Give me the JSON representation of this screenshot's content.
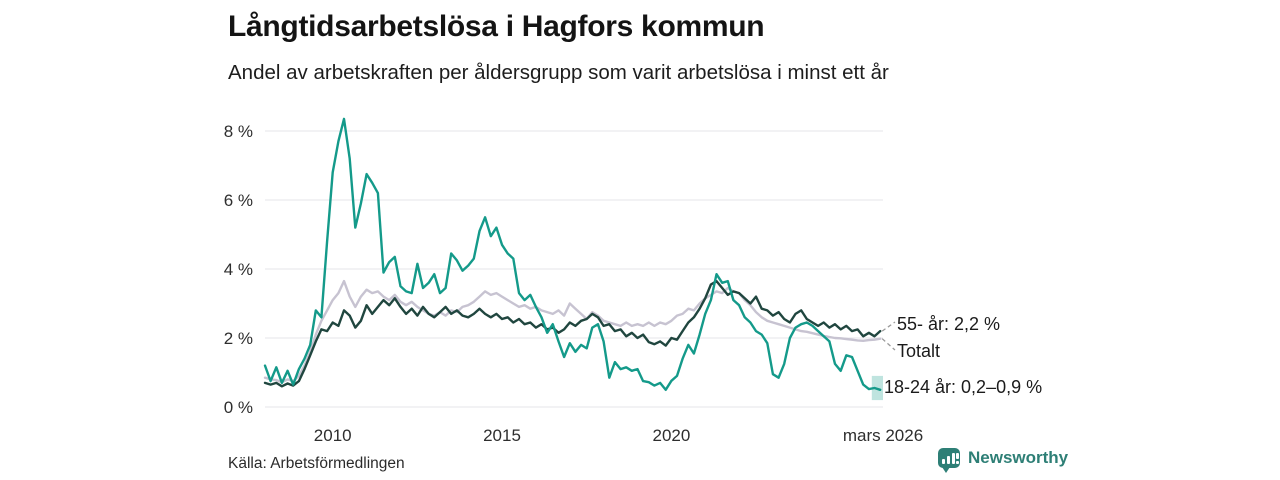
{
  "header": {
    "title": "Långtidsarbetslösa i Hagfors kommun",
    "subtitle": "Andel av arbetskraften per åldersgrupp som varit arbetslösa i minst ett år"
  },
  "footer": {
    "source": "Källa: Arbetsförmedlingen",
    "brand": "Newsworthy",
    "brand_color": "#2e7f76",
    "logo_icon": "bar-chart-speech-bubble"
  },
  "chart_data": {
    "type": "line",
    "title": "Långtidsarbetslösa i Hagfors kommun",
    "subtitle": "Andel av arbetskraften per åldersgrupp som varit arbetslösa i minst ett år",
    "xlabel": "",
    "ylabel": "",
    "xlim": [
      2008,
      2026.25
    ],
    "ylim": [
      0,
      8.6
    ],
    "grid": "horizontal",
    "grid_color": "#e5e4ea",
    "x_start": 2008.0,
    "x_step_years": 0.1666667,
    "x_ticks": [
      {
        "value": 2010,
        "label": "2010"
      },
      {
        "value": 2015,
        "label": "2015"
      },
      {
        "value": 2020,
        "label": "2020"
      },
      {
        "value": 2026.25,
        "label": "mars 2026"
      }
    ],
    "y_ticks": [
      {
        "value": 0,
        "label": "0 %"
      },
      {
        "value": 2,
        "label": "2 %"
      },
      {
        "value": 4,
        "label": "4 %"
      },
      {
        "value": 6,
        "label": "6 %"
      },
      {
        "value": 8,
        "label": "8 %"
      }
    ],
    "legend_position": "end-of-line-labels",
    "end_labels": {
      "age55": "55- år: 2,2 %",
      "total": "Totalt",
      "age1824": "18-24 år: 0,2–0,9 %"
    },
    "uncertainty_band": {
      "series": "18-24 år",
      "x_from": 2025.92,
      "x_to": 2026.25,
      "y_from": 0.2,
      "y_to": 0.9,
      "color": "rgba(20,154,138,0.27)"
    },
    "series": [
      {
        "name": "Totalt",
        "color": "#c7c3d1",
        "end_value": 2.0,
        "values": [
          0.85,
          0.8,
          0.78,
          0.72,
          0.8,
          0.75,
          0.9,
          1.2,
          1.6,
          2.1,
          2.5,
          2.8,
          3.1,
          3.3,
          3.65,
          3.2,
          2.9,
          3.2,
          3.4,
          3.3,
          3.35,
          3.2,
          3.1,
          3.25,
          3.05,
          2.95,
          3.05,
          2.9,
          2.8,
          2.7,
          2.65,
          2.75,
          2.65,
          2.8,
          2.75,
          2.9,
          2.95,
          3.05,
          3.2,
          3.35,
          3.25,
          3.3,
          3.2,
          3.1,
          3.0,
          2.9,
          2.95,
          2.85,
          2.9,
          2.8,
          2.75,
          2.7,
          2.8,
          2.65,
          3.0,
          2.85,
          2.7,
          2.55,
          2.75,
          2.65,
          2.5,
          2.45,
          2.4,
          2.35,
          2.45,
          2.35,
          2.4,
          2.35,
          2.45,
          2.35,
          2.45,
          2.4,
          2.5,
          2.65,
          2.7,
          2.85,
          2.8,
          3.0,
          3.15,
          3.25,
          3.35,
          3.3,
          3.45,
          3.35,
          3.3,
          3.1,
          2.95,
          2.75,
          2.6,
          2.5,
          2.45,
          2.4,
          2.35,
          2.3,
          2.25,
          2.2,
          2.18,
          2.14,
          2.1,
          2.06,
          2.03,
          2.0,
          1.99,
          1.97,
          1.95,
          1.93,
          1.92,
          1.94,
          1.95,
          1.98
        ]
      },
      {
        "name": "55- år",
        "color": "#20463f",
        "end_value": 2.2,
        "values": [
          0.7,
          0.65,
          0.7,
          0.6,
          0.68,
          0.62,
          0.75,
          1.1,
          1.5,
          1.9,
          2.25,
          2.2,
          2.45,
          2.35,
          2.8,
          2.65,
          2.3,
          2.5,
          2.95,
          2.7,
          2.9,
          3.1,
          2.95,
          3.15,
          2.9,
          2.7,
          2.85,
          2.65,
          2.9,
          2.7,
          2.6,
          2.75,
          2.9,
          2.7,
          2.8,
          2.65,
          2.6,
          2.7,
          2.85,
          2.7,
          2.6,
          2.7,
          2.55,
          2.6,
          2.45,
          2.55,
          2.4,
          2.45,
          2.3,
          2.4,
          2.25,
          2.3,
          2.15,
          2.25,
          2.45,
          2.35,
          2.5,
          2.55,
          2.7,
          2.6,
          2.35,
          2.4,
          2.2,
          2.25,
          2.05,
          2.15,
          2.0,
          2.1,
          1.88,
          1.82,
          1.9,
          1.78,
          2.0,
          1.95,
          2.2,
          2.45,
          2.6,
          2.85,
          3.15,
          3.55,
          3.65,
          3.45,
          3.25,
          3.35,
          3.3,
          3.15,
          3.0,
          3.2,
          2.85,
          2.8,
          2.65,
          2.75,
          2.55,
          2.45,
          2.7,
          2.8,
          2.55,
          2.45,
          2.35,
          2.45,
          2.3,
          2.4,
          2.25,
          2.35,
          2.2,
          2.25,
          2.05,
          2.15,
          2.05,
          2.2
        ]
      },
      {
        "name": "18-24 år",
        "color": "#149a8a",
        "end_value_range": [
          0.2,
          0.9
        ],
        "values": [
          1.2,
          0.75,
          1.15,
          0.7,
          1.05,
          0.65,
          1.1,
          1.4,
          1.8,
          2.8,
          2.6,
          4.8,
          6.8,
          7.7,
          8.35,
          7.2,
          5.2,
          5.9,
          6.75,
          6.5,
          6.2,
          3.9,
          4.2,
          4.35,
          3.5,
          3.35,
          3.3,
          4.15,
          3.45,
          3.6,
          3.85,
          3.3,
          3.45,
          4.45,
          4.25,
          3.95,
          4.1,
          4.3,
          5.1,
          5.5,
          4.95,
          5.2,
          4.7,
          4.45,
          4.3,
          3.3,
          3.1,
          3.25,
          2.9,
          2.6,
          2.15,
          2.4,
          1.9,
          1.45,
          1.85,
          1.6,
          1.8,
          1.7,
          2.3,
          2.4,
          1.9,
          0.85,
          1.3,
          1.1,
          1.15,
          1.05,
          1.1,
          0.75,
          0.72,
          0.62,
          0.7,
          0.5,
          0.76,
          0.9,
          1.4,
          1.8,
          1.55,
          2.1,
          2.7,
          3.1,
          3.85,
          3.6,
          3.65,
          3.1,
          2.95,
          2.6,
          2.45,
          2.2,
          2.1,
          1.85,
          0.95,
          0.85,
          1.25,
          2.0,
          2.3,
          2.4,
          2.45,
          2.35,
          2.2,
          2.05,
          1.9,
          1.25,
          1.05,
          1.5,
          1.45,
          1.05,
          0.65,
          0.52,
          0.55,
          0.5
        ]
      }
    ],
    "source": "Källa: Arbetsförmedlingen"
  }
}
